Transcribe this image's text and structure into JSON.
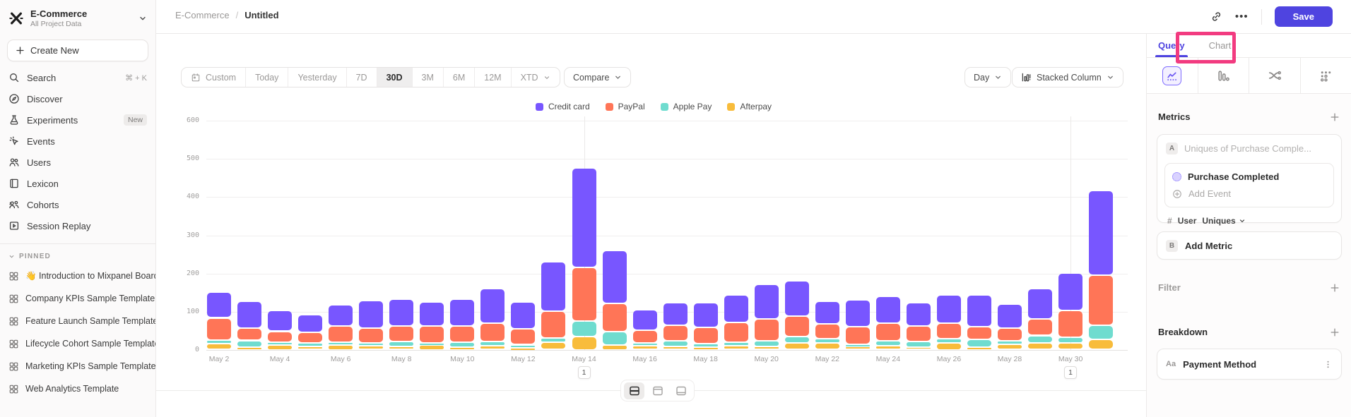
{
  "sidebar": {
    "project": {
      "name": "E-Commerce",
      "subtitle": "All Project Data"
    },
    "create_new_label": "Create New",
    "items": [
      {
        "icon": "search-icon",
        "label": "Search",
        "shortcut": "⌘ + K"
      },
      {
        "icon": "discover-icon",
        "label": "Discover"
      },
      {
        "icon": "experiments-icon",
        "label": "Experiments",
        "badge": "New"
      },
      {
        "icon": "events-icon",
        "label": "Events"
      },
      {
        "icon": "users-icon",
        "label": "Users"
      },
      {
        "icon": "lexicon-icon",
        "label": "Lexicon"
      },
      {
        "icon": "cohorts-icon",
        "label": "Cohorts"
      },
      {
        "icon": "session-replay-icon",
        "label": "Session Replay"
      }
    ],
    "pinned_header": "PINNED",
    "pinned": [
      {
        "label": "👋 Introduction to Mixpanel Board"
      },
      {
        "label": "Company KPIs Sample Template"
      },
      {
        "label": "Feature Launch Sample Template"
      },
      {
        "label": "Lifecycle Cohort Sample Template"
      },
      {
        "label": "Marketing KPIs Sample Template"
      },
      {
        "label": "Web Analytics Template"
      }
    ]
  },
  "header": {
    "breadcrumb_root": "E-Commerce",
    "breadcrumb_sep": "/",
    "breadcrumb_leaf": "Untitled",
    "more_label": "•••",
    "save_label": "Save"
  },
  "toolbar": {
    "ranges": [
      "Custom",
      "Today",
      "Yesterday",
      "7D",
      "30D",
      "3M",
      "6M",
      "12M",
      "XTD"
    ],
    "selected_range": "30D",
    "compare_label": "Compare",
    "granularity_label": "Day",
    "chart_type_label": "Stacked Column"
  },
  "panel": {
    "tabs": [
      {
        "label": "Query",
        "active": true
      },
      {
        "label": "Chart",
        "active": false,
        "annotated": true
      }
    ],
    "icon_tabs": [
      "insights-chart-icon",
      "funnel-bars-icon",
      "flows-icon",
      "retention-dots-icon"
    ],
    "metrics": {
      "title": "Metrics",
      "row_a_badge": "A",
      "row_a_text": "Uniques of Purchase Comple...",
      "event_name": "Purchase Completed",
      "add_event_label": "Add Event",
      "unit_hash": "#",
      "unit_entity": "User",
      "unit_measure": "Uniques",
      "row_b_badge": "B",
      "add_metric_label": "Add Metric"
    },
    "filter_title": "Filter",
    "breakdown_title": "Breakdown",
    "breakdown_item": {
      "prefix": "Aa",
      "label": "Payment Method"
    }
  },
  "colors": {
    "accent": "#4f44e0",
    "annotation_pink": "#f23b80",
    "credit_card": "#7856FF",
    "paypal": "#FF7557",
    "apple_pay": "#6FDCCF",
    "afterpay": "#F8BC3B"
  },
  "chart_data": {
    "type": "bar",
    "stacked": true,
    "title": "",
    "xlabel": "",
    "ylabel": "",
    "ylim": [
      0,
      600
    ],
    "yticks": [
      0,
      100,
      200,
      300,
      400,
      500,
      600
    ],
    "grid": true,
    "legend_position": "top",
    "x": [
      "May 2",
      "May 3",
      "May 4",
      "May 5",
      "May 6",
      "May 7",
      "May 8",
      "May 9",
      "May 10",
      "May 11",
      "May 12",
      "May 13",
      "May 14",
      "May 15",
      "May 16",
      "May 17",
      "May 18",
      "May 19",
      "May 20",
      "May 21",
      "May 22",
      "May 23",
      "May 24",
      "May 25",
      "May 26",
      "May 27",
      "May 28",
      "May 29",
      "May 30",
      "May 31"
    ],
    "x_tick_step": 2,
    "stack_order_bottom_to_top": [
      "Afterpay",
      "Apple Pay",
      "PayPal",
      "Credit card"
    ],
    "series": [
      {
        "name": "Credit card",
        "color": "#7856FF",
        "values": [
          68,
          69,
          55,
          45,
          56,
          72,
          71,
          62,
          71,
          90,
          70,
          130,
          260,
          139,
          55,
          60,
          65,
          71,
          89,
          94,
          59,
          70,
          70,
          60,
          74,
          84,
          63,
          78,
          98,
          222
        ]
      },
      {
        "name": "PayPal",
        "color": "#FF7557",
        "values": [
          58,
          33,
          29,
          28,
          42,
          40,
          40,
          45,
          42,
          48,
          42,
          70,
          140,
          74,
          32,
          40,
          42,
          52,
          58,
          52,
          39,
          46,
          47,
          41,
          41,
          33,
          34,
          44,
          71,
          132
        ]
      },
      {
        "name": "Apple Pay",
        "color": "#6FDCCF",
        "values": [
          10,
          18,
          6,
          10,
          8,
          7,
          14,
          5,
          14,
          12,
          8,
          10,
          40,
          35,
          8,
          15,
          10,
          10,
          14,
          18,
          12,
          5,
          13,
          14,
          11,
          21,
          9,
          20,
          15,
          36
        ]
      },
      {
        "name": "Afterpay",
        "color": "#F8BC3B",
        "values": [
          15,
          6,
          13,
          8,
          12,
          10,
          8,
          12,
          6,
          10,
          5,
          20,
          35,
          12,
          10,
          8,
          6,
          10,
          9,
          17,
          17,
          9,
          10,
          7,
          18,
          6,
          14,
          17,
          17,
          27
        ]
      }
    ],
    "annotations": [
      {
        "x": "May 14",
        "label": "1"
      },
      {
        "x": "May 30",
        "label": "1"
      }
    ]
  }
}
